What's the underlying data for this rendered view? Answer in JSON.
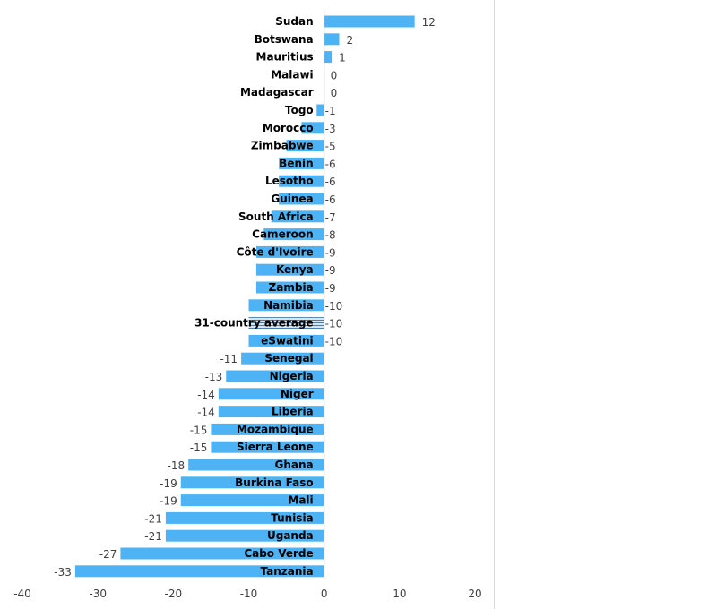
{
  "chart_data": {
    "type": "bar",
    "orientation": "horizontal",
    "categories": [
      "Sudan",
      "Botswana",
      "Mauritius",
      "Malawi",
      "Madagascar",
      "Togo",
      "Morocco",
      "Zimbabwe",
      "Benin",
      "Lesotho",
      "Guinea",
      "South Africa",
      "Cameroon",
      "Côte d'Ivoire",
      "Kenya",
      "Zambia",
      "Namibia",
      "31-country average",
      "eSwatini",
      "Senegal",
      "Nigeria",
      "Niger",
      "Liberia",
      "Mozambique",
      "Sierra Leone",
      "Ghana",
      "Burkina Faso",
      "Mali",
      "Tunisia",
      "Uganda",
      "Cabo Verde",
      "Tanzania"
    ],
    "values": [
      12,
      2,
      1,
      0,
      0,
      -1,
      -3,
      -5,
      -6,
      -6,
      -6,
      -7,
      -8,
      -9,
      -9,
      -9,
      -10,
      -10,
      -10,
      -11,
      -13,
      -14,
      -14,
      -15,
      -15,
      -18,
      -19,
      -19,
      -21,
      -21,
      -27,
      -33
    ],
    "highlight": "31-country average",
    "xlim": [
      -40,
      20
    ],
    "xticks": [
      -40,
      -30,
      -20,
      -10,
      0,
      10,
      20
    ],
    "grid": false,
    "colors": {
      "bar": "#4db3f5",
      "average": "#d6e6f2",
      "average_stripe": "#4a7fa8"
    }
  }
}
